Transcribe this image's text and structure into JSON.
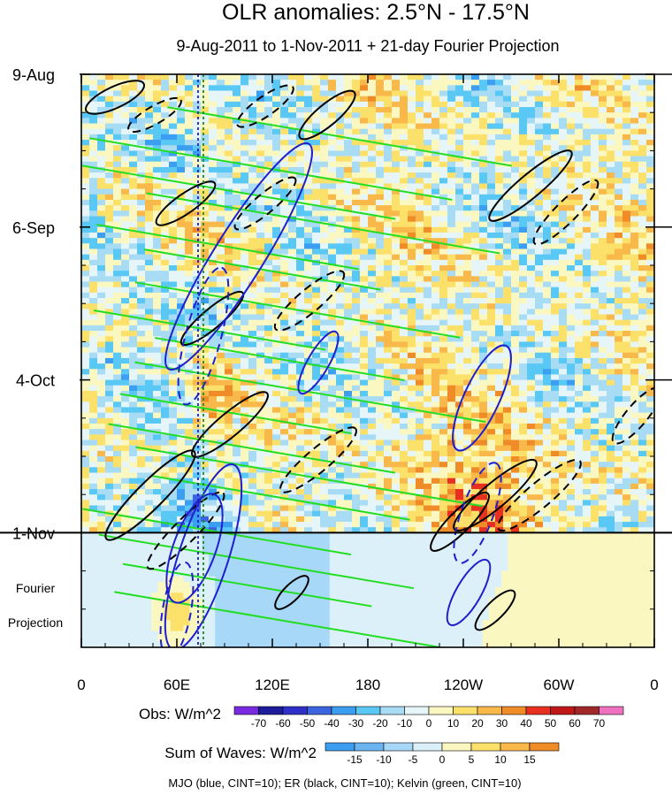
{
  "chart_data": {
    "type": "heatmap",
    "title": "OLR anomalies: 2.5°N - 17.5°N",
    "subtitle": "9-Aug-2011 to 1-Nov-2011 + 21-day Fourier Projection",
    "x_ticks": [
      {
        "lon": 0,
        "label": "0"
      },
      {
        "lon": 60,
        "label": "60E"
      },
      {
        "lon": 120,
        "label": "120E"
      },
      {
        "lon": 180,
        "label": "180"
      },
      {
        "lon": 240,
        "label": "120W"
      },
      {
        "lon": 300,
        "label": "60W"
      },
      {
        "lon": 360,
        "label": "0"
      }
    ],
    "xlim": [
      0,
      360
    ],
    "y_ticks": [
      {
        "day": 0,
        "label": "9-Aug"
      },
      {
        "day": 28,
        "label": "6-Sep"
      },
      {
        "day": 56,
        "label": "4-Oct"
      },
      {
        "day": 84,
        "label": "1-Nov"
      }
    ],
    "ylim_days": [
      0,
      105
    ],
    "observation_end_day": 84,
    "projection_label": "Fourier\nProjection",
    "obs_colorbar": {
      "label": "Obs: W/m^2",
      "levels": [
        -70,
        -60,
        -50,
        -40,
        -30,
        -20,
        -10,
        0,
        10,
        20,
        30,
        40,
        50,
        60,
        70
      ],
      "colors": [
        "#7a2be2",
        "#1c1c9c",
        "#3030c8",
        "#3c64e0",
        "#3c9ef0",
        "#5ac8f5",
        "#a8dcf5",
        "#e6f5f8",
        "#fbf7c0",
        "#fbe06a",
        "#f8b84a",
        "#f08c28",
        "#e83020",
        "#c01818",
        "#a02828",
        "#f070c0"
      ]
    },
    "waves_colorbar": {
      "label": "Sum of Waves: W/m^2",
      "levels": [
        -15,
        -10,
        -5,
        0,
        5,
        10,
        15
      ],
      "colors": [
        "#3c9ef0",
        "#6ab4f0",
        "#a8d8f8",
        "#dcf0fa",
        "#fbf7c0",
        "#fbe06a",
        "#f8b84a",
        "#f08c28"
      ]
    },
    "overlays": [
      {
        "name": "MJO",
        "color": "blue",
        "cint": 10
      },
      {
        "name": "ER",
        "color": "black",
        "cint": 10
      },
      {
        "name": "Kelvin",
        "color": "green",
        "cint": 10
      }
    ],
    "vertical_line_lon": 75,
    "footnote": "MJO (blue, CINT=10); ER (black, CINT=10); Kelvin (green, CINT=10)"
  }
}
